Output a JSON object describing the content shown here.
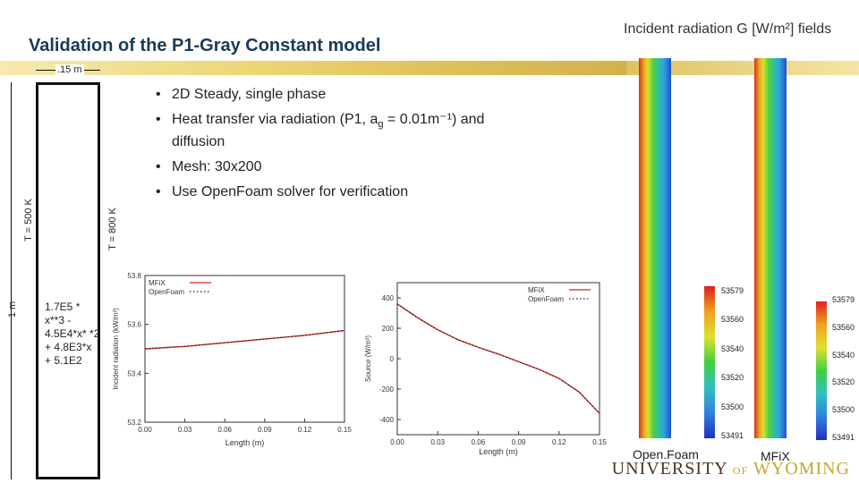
{
  "title": "Validation of the P1-Gray Constant  model",
  "right_title": "Incident radiation G [W/m²] fields",
  "domain": {
    "width_label": ".15 m",
    "height_label": "1 m",
    "left_bc": "T = 500 K",
    "right_bc": "T = 800 K",
    "formula": "1.7E5 * x**3 - 4.5E4*x* *2 + 4.8E3*x + 5.1E2"
  },
  "bullets": [
    "2D Steady, single phase",
    "Heat transfer via radiation (P1, a",
    "Mesh: 30x200",
    "Use OpenFoam solver for verification"
  ],
  "bullet2_sub": "g",
  "bullet2_tail": " = 0.01m⁻¹) and diffusion",
  "chart_data": [
    {
      "type": "line",
      "xlabel": "Length (m)",
      "ylabel": "Incident radiation (kW/m²)",
      "xlim": [
        0.0,
        0.15
      ],
      "ylim": [
        53.2,
        53.8
      ],
      "xticks": [
        "0.00",
        "0.03",
        "0.06",
        "0.09",
        "0.12",
        "0.15"
      ],
      "yticks": [
        "53.2",
        "53.4",
        "53.6",
        "53.8"
      ],
      "legend_position": "top-left",
      "series": [
        {
          "name": "MFiX",
          "color": "#d62728",
          "style": "solid",
          "x": [
            0.0,
            0.03,
            0.06,
            0.09,
            0.12,
            0.15
          ],
          "y": [
            53.5,
            53.51,
            53.525,
            53.54,
            53.555,
            53.575
          ]
        },
        {
          "name": "OpenFoam",
          "color": "#222222",
          "style": "dotted",
          "x": [
            0.0,
            0.03,
            0.06,
            0.09,
            0.12,
            0.15
          ],
          "y": [
            53.5,
            53.51,
            53.525,
            53.54,
            53.555,
            53.575
          ]
        }
      ]
    },
    {
      "type": "line",
      "xlabel": "Length (m)",
      "ylabel": "Source (W/m³)",
      "xlim": [
        0.0,
        0.15
      ],
      "ylim": [
        -500,
        500
      ],
      "xticks": [
        "0.00",
        "0.03",
        "0.06",
        "0.09",
        "0.12",
        "0.15"
      ],
      "yticks": [
        "400",
        "200",
        "0",
        "-200",
        "-400"
      ],
      "legend_position": "top-right",
      "series": [
        {
          "name": "MFiX",
          "color": "#d62728",
          "style": "solid",
          "x": [
            0.0,
            0.015,
            0.03,
            0.045,
            0.06,
            0.075,
            0.09,
            0.105,
            0.12,
            0.135,
            0.15
          ],
          "y": [
            360,
            270,
            190,
            125,
            75,
            30,
            -20,
            -70,
            -130,
            -220,
            -360
          ]
        },
        {
          "name": "OpenFoam",
          "color": "#222222",
          "style": "dotted",
          "x": [
            0.0,
            0.015,
            0.03,
            0.045,
            0.06,
            0.075,
            0.09,
            0.105,
            0.12,
            0.135,
            0.15
          ],
          "y": [
            360,
            270,
            190,
            125,
            75,
            30,
            -20,
            -70,
            -130,
            -220,
            -360
          ]
        }
      ]
    }
  ],
  "colorbar_ticks": [
    "53579",
    "53560",
    "53540",
    "53520",
    "53500",
    "53491"
  ],
  "field_labels": [
    "Open.Foam",
    "MFiX"
  ],
  "logo": {
    "part1": "UNIVERSITY",
    "part2": "OF",
    "part3": "WYOMING"
  },
  "colors": {
    "title": "#1b3a55",
    "gold": "#c9a52a",
    "mfix_line": "#d62728"
  }
}
